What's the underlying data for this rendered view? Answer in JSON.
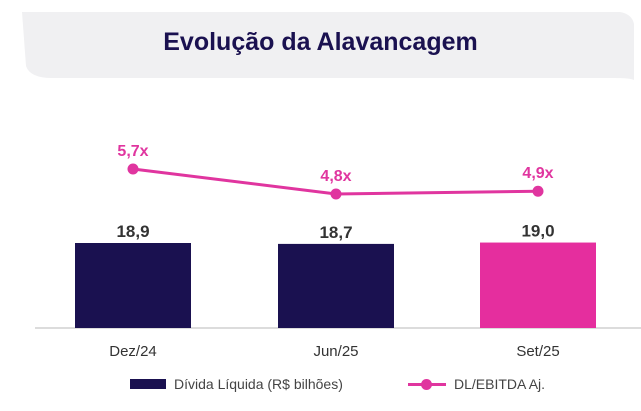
{
  "title": "Evolução da Alavancagem",
  "colors": {
    "title": "#1a1150",
    "bar_primary": "#1a1150",
    "bar_highlight": "#e52e9e",
    "line": "#e0359f",
    "axis_text": "#333333",
    "bar_label": "#333333",
    "banner": "#f0f0f2"
  },
  "legend": {
    "bar_label": "Dívida Líquida (R$ bilhões)",
    "line_label": "DL/EBITDA Aj."
  },
  "chart_data": {
    "type": "bar",
    "categories": [
      "Dez/24",
      "Jun/25",
      "Set/25"
    ],
    "series": [
      {
        "name": "Dívida Líquida (R$ bilhões)",
        "type": "bar",
        "values": [
          18.9,
          18.7,
          19.0
        ],
        "labels": [
          "18,9",
          "18,7",
          "19,0"
        ],
        "colors": [
          "#1a1150",
          "#1a1150",
          "#e52e9e"
        ]
      },
      {
        "name": "DL/EBITDA Aj.",
        "type": "line",
        "values": [
          5.7,
          4.8,
          4.9
        ],
        "labels": [
          "5,7x",
          "4,8x",
          "4,9x"
        ],
        "color": "#e0359f"
      }
    ],
    "grid": false,
    "legend_position": "bottom"
  }
}
